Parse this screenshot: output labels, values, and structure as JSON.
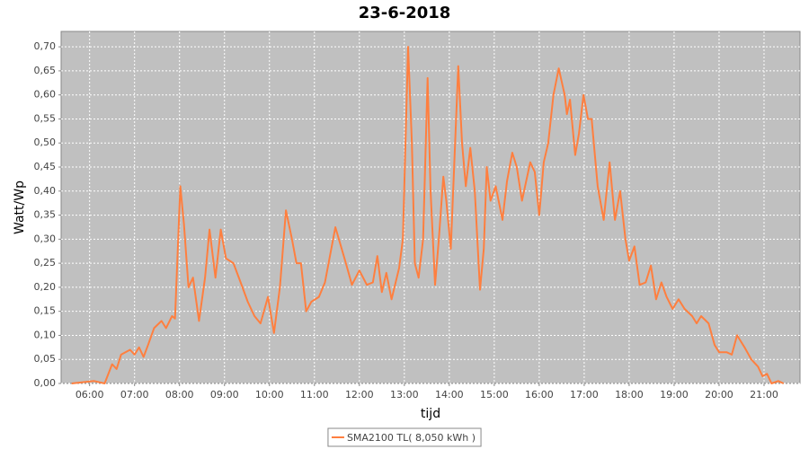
{
  "chart_data": {
    "type": "line",
    "title": "23-6-2018",
    "x_label": "tijd",
    "y_label": "Watt/Wp",
    "x": [
      "05:36",
      "06:06",
      "06:20",
      "06:30",
      "06:36",
      "06:42",
      "06:54",
      "07:00",
      "07:06",
      "07:12",
      "07:18",
      "07:26",
      "07:36",
      "07:42",
      "07:50",
      "07:54",
      "08:01",
      "08:06",
      "08:12",
      "08:18",
      "08:26",
      "08:34",
      "08:40",
      "08:48",
      "08:55",
      "09:02",
      "09:12",
      "09:24",
      "09:31",
      "09:40",
      "09:48",
      "09:58",
      "10:06",
      "10:14",
      "10:22",
      "10:30",
      "10:36",
      "10:42",
      "10:49",
      "10:56",
      "11:06",
      "11:14",
      "11:28",
      "11:42",
      "11:50",
      "12:00",
      "12:10",
      "12:18",
      "12:24",
      "12:30",
      "12:36",
      "12:43",
      "12:53",
      "12:58",
      "13:05",
      "13:10",
      "13:14",
      "13:19",
      "13:25",
      "13:31",
      "13:35",
      "13:41",
      "13:46",
      "13:52",
      "13:56",
      "14:02",
      "14:12",
      "14:17",
      "14:22",
      "14:28",
      "14:34",
      "14:41",
      "14:46",
      "14:50",
      "14:55",
      "15:02",
      "15:11",
      "15:17",
      "15:24",
      "15:30",
      "15:37",
      "15:48",
      "15:54",
      "16:00",
      "16:06",
      "16:12",
      "16:19",
      "16:26",
      "16:34",
      "16:37",
      "16:41",
      "16:48",
      "16:53",
      "16:59",
      "17:05",
      "17:10",
      "17:18",
      "17:26",
      "17:34",
      "17:41",
      "17:48",
      "17:55",
      "18:00",
      "18:07",
      "18:14",
      "18:22",
      "18:29",
      "18:36",
      "18:43",
      "18:50",
      "18:58",
      "19:06",
      "19:14",
      "19:24",
      "19:30",
      "19:36",
      "19:46",
      "19:54",
      "20:00",
      "20:10",
      "20:17",
      "20:24",
      "20:34",
      "20:43",
      "20:52",
      "20:58",
      "21:04",
      "21:10",
      "21:19",
      "21:26"
    ],
    "series": [
      {
        "name": "SMA2100 TL( 8,050 kWh )",
        "color": "#ff7f3f",
        "values": [
          0,
          0.005,
          0,
          0.04,
          0.03,
          0.06,
          0.07,
          0.06,
          0.075,
          0.055,
          0.08,
          0.115,
          0.13,
          0.115,
          0.14,
          0.135,
          0.41,
          0.33,
          0.2,
          0.22,
          0.13,
          0.22,
          0.32,
          0.22,
          0.32,
          0.26,
          0.25,
          0.2,
          0.17,
          0.14,
          0.125,
          0.18,
          0.105,
          0.2,
          0.36,
          0.3,
          0.25,
          0.25,
          0.15,
          0.17,
          0.18,
          0.21,
          0.325,
          0.25,
          0.205,
          0.235,
          0.205,
          0.21,
          0.265,
          0.19,
          0.23,
          0.175,
          0.24,
          0.3,
          0.7,
          0.5,
          0.25,
          0.22,
          0.3,
          0.635,
          0.4,
          0.205,
          0.3,
          0.43,
          0.38,
          0.28,
          0.66,
          0.5,
          0.41,
          0.49,
          0.4,
          0.195,
          0.28,
          0.45,
          0.38,
          0.41,
          0.34,
          0.42,
          0.48,
          0.45,
          0.38,
          0.46,
          0.44,
          0.35,
          0.46,
          0.5,
          0.6,
          0.655,
          0.6,
          0.56,
          0.59,
          0.475,
          0.52,
          0.6,
          0.55,
          0.55,
          0.41,
          0.34,
          0.46,
          0.34,
          0.4,
          0.3,
          0.255,
          0.285,
          0.205,
          0.21,
          0.245,
          0.175,
          0.21,
          0.18,
          0.155,
          0.175,
          0.155,
          0.14,
          0.125,
          0.14,
          0.125,
          0.08,
          0.065,
          0.065,
          0.06,
          0.1,
          0.075,
          0.05,
          0.035,
          0.015,
          0.02,
          0,
          0.005,
          0
        ]
      }
    ],
    "xlim": [
      "05:22",
      "21:48"
    ],
    "xticks": [
      "06:00",
      "07:00",
      "08:00",
      "09:00",
      "10:00",
      "11:00",
      "12:00",
      "13:00",
      "14:00",
      "15:00",
      "16:00",
      "17:00",
      "18:00",
      "19:00",
      "20:00",
      "21:00"
    ],
    "ylim": [
      0,
      0.732
    ],
    "yticks": [
      {
        "value": 0,
        "label": "0,00"
      },
      {
        "value": 0.05,
        "label": "0,05"
      },
      {
        "value": 0.1,
        "label": "0,10"
      },
      {
        "value": 0.15,
        "label": "0,15"
      },
      {
        "value": 0.2,
        "label": "0,20"
      },
      {
        "value": 0.25,
        "label": "0,25"
      },
      {
        "value": 0.3,
        "label": "0,30"
      },
      {
        "value": 0.35,
        "label": "0,35"
      },
      {
        "value": 0.4,
        "label": "0,40"
      },
      {
        "value": 0.45,
        "label": "0,45"
      },
      {
        "value": 0.5,
        "label": "0,50"
      },
      {
        "value": 0.55,
        "label": "0,55"
      },
      {
        "value": 0.6,
        "label": "0,60"
      },
      {
        "value": 0.65,
        "label": "0,65"
      },
      {
        "value": 0.7,
        "label": "0,70"
      }
    ],
    "grid": true,
    "legend": "bottom"
  }
}
